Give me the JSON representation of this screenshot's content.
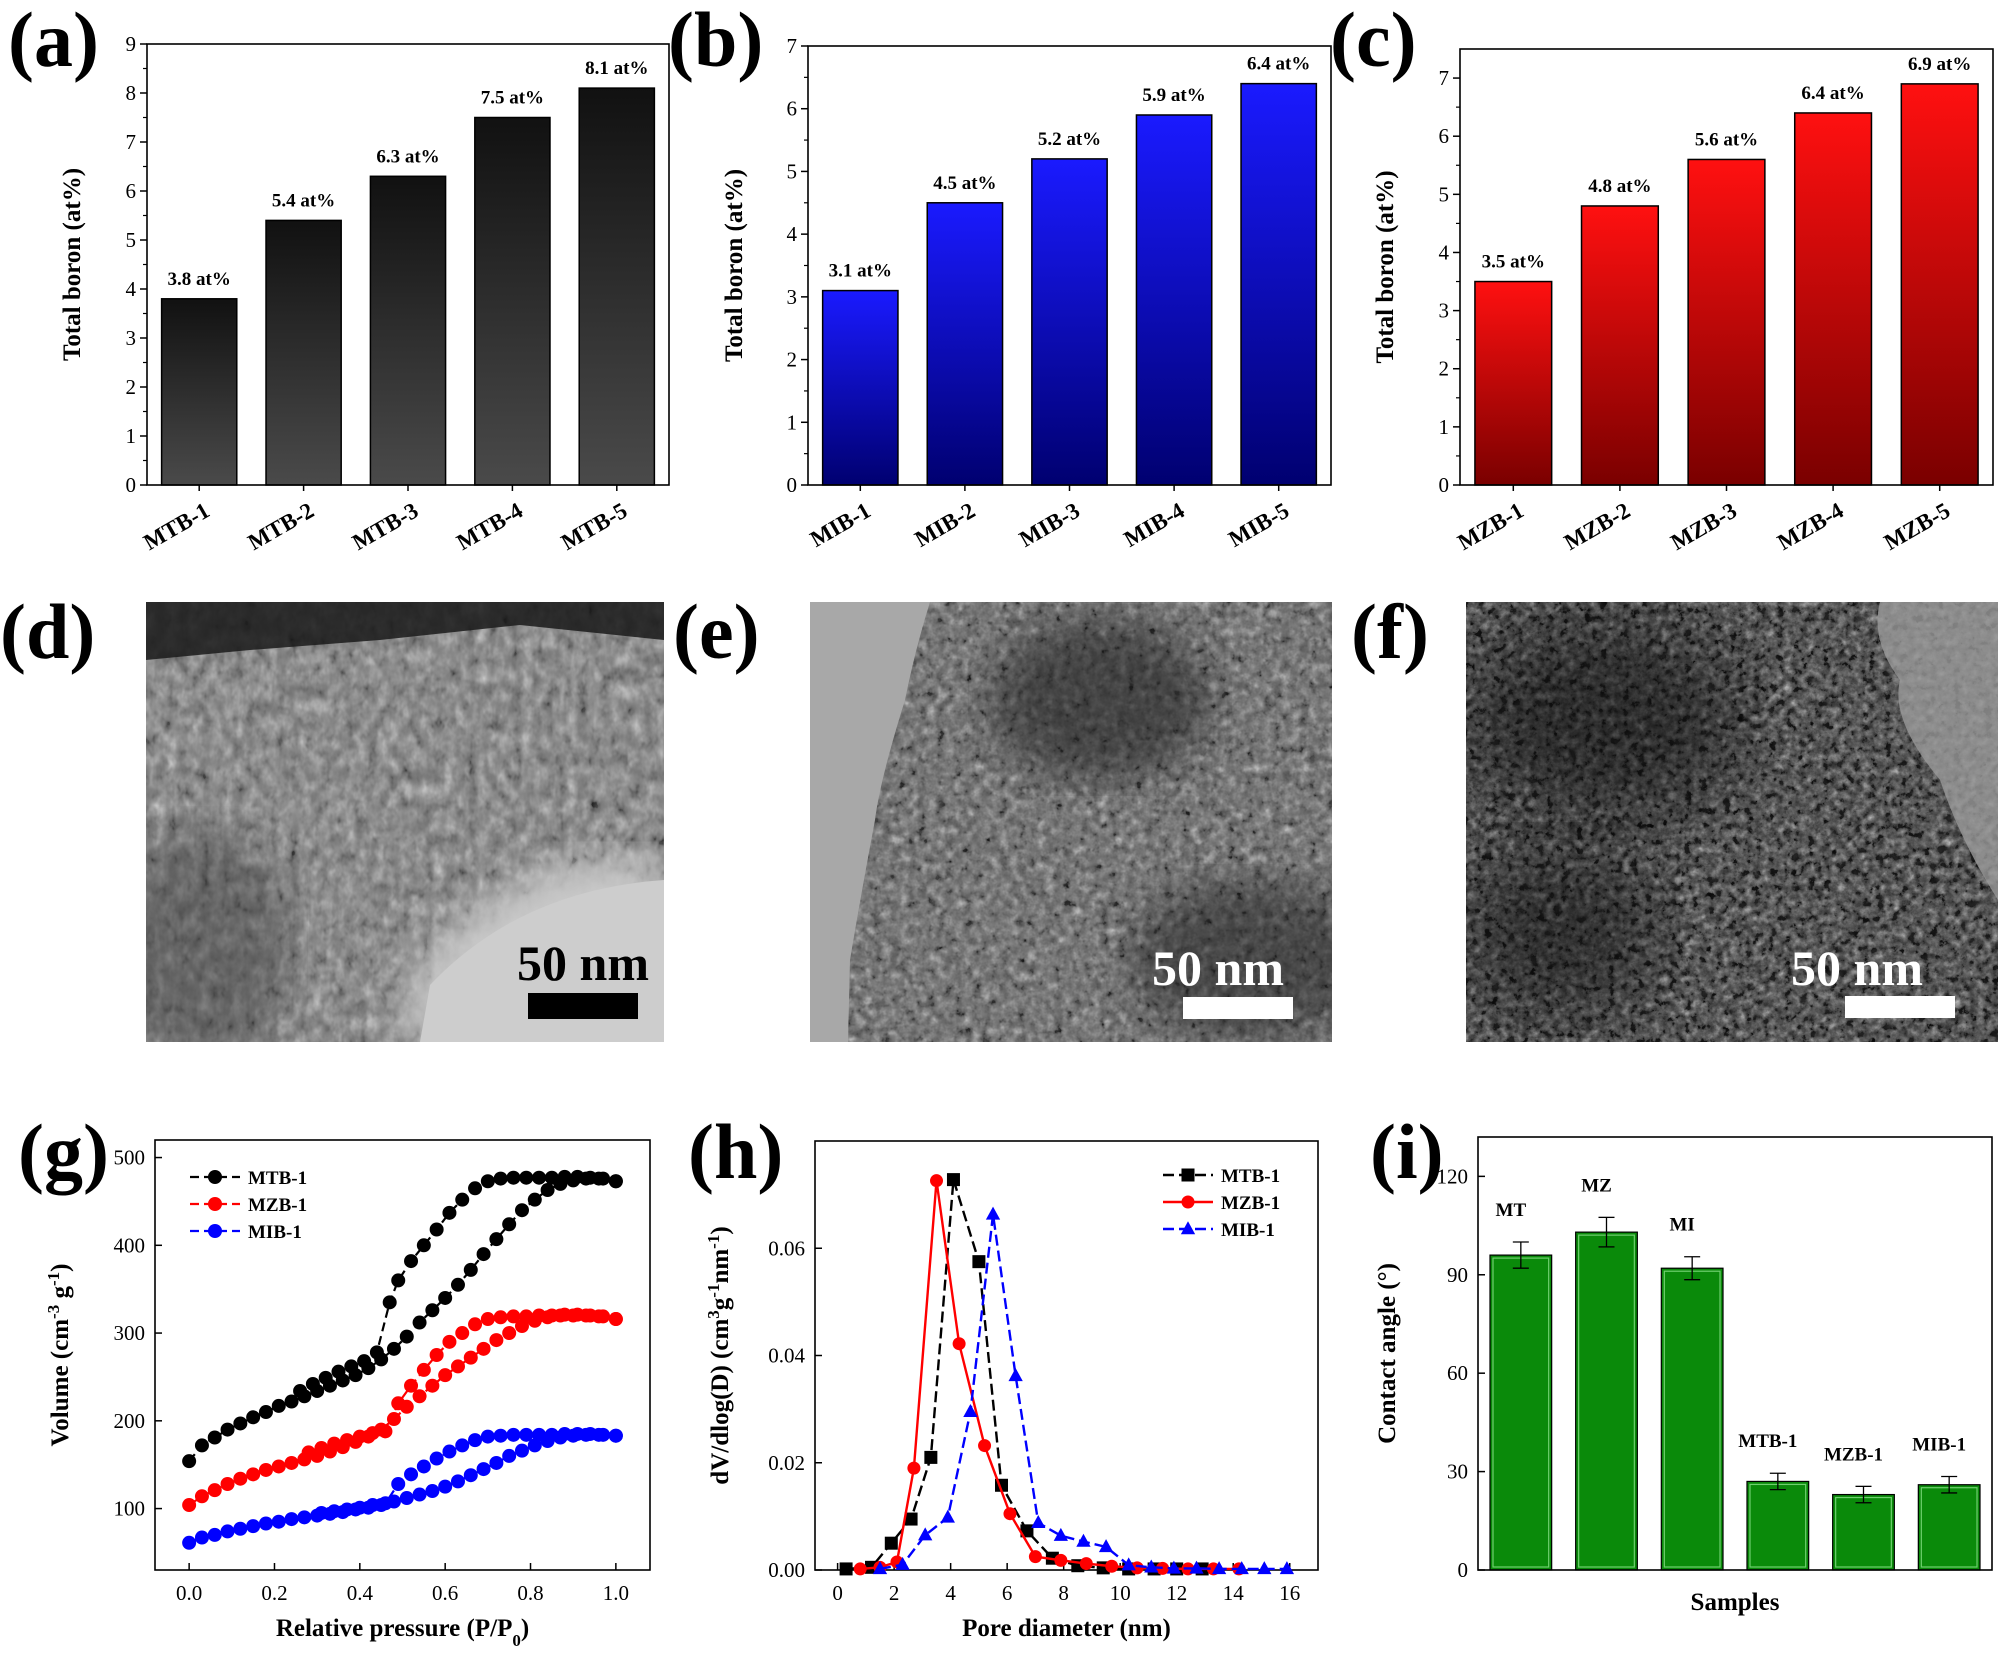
{
  "panel_letters": [
    "(a)",
    "(b)",
    "(c)",
    "(d)",
    "(e)",
    "(f)",
    "(g)",
    "(h)",
    "(i)"
  ],
  "colors": {
    "mtb": "#000000",
    "mib": "#0000ff",
    "mzb": "#ff0000",
    "contact": "#0a8a0a"
  },
  "chart_data": [
    {
      "panel": "(a)",
      "type": "bar",
      "categories": [
        "MTB-1",
        "MTB-2",
        "MTB-3",
        "MTB-4",
        "MTB-5"
      ],
      "values": [
        3.8,
        5.4,
        6.3,
        7.5,
        8.1
      ],
      "data_labels": [
        "3.8 at%",
        "5.4 at%",
        "6.3 at%",
        "7.5 at%",
        "8.1 at%"
      ],
      "ylabel": "Total boron (at%)",
      "ylim": [
        0,
        9
      ],
      "yticks": [
        0,
        1,
        2,
        3,
        4,
        5,
        6,
        7,
        8,
        9
      ],
      "color_top": "#111111",
      "color_bottom": "#4a4a4a"
    },
    {
      "panel": "(b)",
      "type": "bar",
      "categories": [
        "MIB-1",
        "MIB-2",
        "MIB-3",
        "MIB-4",
        "MIB-5"
      ],
      "values": [
        3.1,
        4.5,
        5.2,
        5.9,
        6.4
      ],
      "data_labels": [
        "3.1 at%",
        "4.5 at%",
        "5.2 at%",
        "5.9 at%",
        "6.4 at%"
      ],
      "ylabel": "Total boron (at%)",
      "ylim": [
        0,
        7
      ],
      "yticks": [
        0,
        1,
        2,
        3,
        4,
        5,
        6,
        7
      ],
      "color_top": "#1a1aff",
      "color_bottom": "#000070"
    },
    {
      "panel": "(c)",
      "type": "bar",
      "categories": [
        "MZB-1",
        "MZB-2",
        "MZB-3",
        "MZB-4",
        "MZB-5"
      ],
      "values": [
        3.5,
        4.8,
        5.6,
        6.4,
        6.9
      ],
      "data_labels": [
        "3.5 at%",
        "4.8 at%",
        "5.6 at%",
        "6.4 at%",
        "6.9 at%"
      ],
      "ylabel": "Total boron (at%)",
      "ylim": [
        0,
        7.5
      ],
      "yticks": [
        0,
        1,
        2,
        3,
        4,
        5,
        6,
        7
      ],
      "color_top": "#ff1010",
      "color_bottom": "#7a0000"
    },
    {
      "panel": "(g)",
      "type": "line",
      "xlabel": "Relative pressure (P/P",
      "xlabel_sub": "0",
      "xlabel_end": ")",
      "ylabel": "Volume (cm",
      "ylabel_sup1": "-3",
      "ylabel_mid": " g",
      "ylabel_sup2": "-1",
      "ylabel_end": ")",
      "xlim": [
        -0.08,
        1.08
      ],
      "ylim": [
        30,
        520
      ],
      "xticks": [
        0.0,
        0.2,
        0.4,
        0.6,
        0.8,
        1.0
      ],
      "xtick_labels": [
        "0.0",
        "0.2",
        "0.4",
        "0.6",
        "0.8",
        "1.0"
      ],
      "yticks": [
        100,
        200,
        300,
        400,
        500
      ],
      "series": [
        {
          "name": "MTB-1",
          "marker": "circle",
          "color": "#000000",
          "adsorption": {
            "x": [
              0.0,
              0.03,
              0.06,
              0.09,
              0.12,
              0.15,
              0.18,
              0.21,
              0.24,
              0.27,
              0.3,
              0.33,
              0.36,
              0.39,
              0.42,
              0.45,
              0.48,
              0.51,
              0.54,
              0.57,
              0.6,
              0.63,
              0.66,
              0.69,
              0.72,
              0.75,
              0.78,
              0.81,
              0.84,
              0.87,
              0.9,
              0.93,
              0.96,
              1.0
            ],
            "y": [
              154,
              172,
              181,
              190,
              197,
              204,
              210,
              217,
              222,
              228,
              234,
              240,
              246,
              252,
              260,
              270,
              282,
              296,
              312,
              326,
              340,
              355,
              372,
              390,
              407,
              424,
              440,
              452,
              463,
              470,
              474,
              476,
              476,
              473
            ]
          },
          "desorption": {
            "x": [
              1.0,
              0.97,
              0.94,
              0.91,
              0.88,
              0.85,
              0.82,
              0.79,
              0.76,
              0.73,
              0.7,
              0.67,
              0.64,
              0.61,
              0.58,
              0.55,
              0.52,
              0.49,
              0.47,
              0.44,
              0.41,
              0.38,
              0.35,
              0.32,
              0.29,
              0.26
            ],
            "y": [
              473,
              476,
              477,
              478,
              478,
              477,
              477,
              477,
              477,
              476,
              473,
              465,
              452,
              437,
              418,
              400,
              382,
              360,
              335,
              278,
              268,
              262,
              256,
              249,
              242,
              234
            ]
          }
        },
        {
          "name": "MZB-1",
          "marker": "circle",
          "color": "#ff0000",
          "adsorption": {
            "x": [
              0.0,
              0.03,
              0.06,
              0.09,
              0.12,
              0.15,
              0.18,
              0.21,
              0.24,
              0.27,
              0.3,
              0.33,
              0.36,
              0.39,
              0.42,
              0.45,
              0.48,
              0.51,
              0.54,
              0.57,
              0.6,
              0.63,
              0.66,
              0.69,
              0.72,
              0.75,
              0.78,
              0.81,
              0.84,
              0.87,
              0.9,
              0.93,
              0.96,
              1.0
            ],
            "y": [
              104,
              114,
              121,
              128,
              134,
              139,
              144,
              148,
              152,
              156,
              160,
              165,
              170,
              176,
              182,
              190,
              202,
              216,
              228,
              240,
              252,
              262,
              272,
              282,
              292,
              300,
              308,
              314,
              318,
              320,
              320,
              320,
              319,
              316
            ]
          },
          "desorption": {
            "x": [
              1.0,
              0.97,
              0.94,
              0.91,
              0.88,
              0.85,
              0.82,
              0.79,
              0.76,
              0.73,
              0.7,
              0.67,
              0.64,
              0.61,
              0.58,
              0.55,
              0.52,
              0.49,
              0.46,
              0.43,
              0.4,
              0.37,
              0.34,
              0.31,
              0.28
            ],
            "y": [
              316,
              319,
              320,
              321,
              321,
              320,
              320,
              319,
              319,
              318,
              316,
              310,
              300,
              290,
              275,
              258,
              240,
              220,
              188,
              186,
              182,
              178,
              174,
              169,
              164
            ]
          }
        },
        {
          "name": "MIB-1",
          "marker": "circle",
          "color": "#0000ff",
          "adsorption": {
            "x": [
              0.0,
              0.03,
              0.06,
              0.09,
              0.12,
              0.15,
              0.18,
              0.21,
              0.24,
              0.27,
              0.3,
              0.33,
              0.36,
              0.39,
              0.42,
              0.45,
              0.48,
              0.51,
              0.54,
              0.57,
              0.6,
              0.63,
              0.66,
              0.69,
              0.72,
              0.75,
              0.78,
              0.81,
              0.84,
              0.87,
              0.9,
              0.93,
              0.96,
              1.0
            ],
            "y": [
              61,
              67,
              70,
              74,
              77,
              80,
              83,
              85,
              88,
              90,
              92,
              94,
              96,
              99,
              101,
              104,
              108,
              112,
              116,
              120,
              125,
              131,
              138,
              145,
              152,
              160,
              166,
              172,
              177,
              181,
              183,
              184,
              184,
              183
            ]
          },
          "desorption": {
            "x": [
              1.0,
              0.97,
              0.94,
              0.91,
              0.88,
              0.85,
              0.82,
              0.79,
              0.76,
              0.73,
              0.7,
              0.67,
              0.64,
              0.61,
              0.58,
              0.55,
              0.52,
              0.49,
              0.46,
              0.43,
              0.4,
              0.37,
              0.34,
              0.31
            ],
            "y": [
              183,
              184,
              185,
              185,
              185,
              184,
              184,
              184,
              184,
              183,
              182,
              178,
              172,
              165,
              157,
              148,
              139,
              128,
              106,
              104,
              101,
              99,
              97,
              95
            ]
          }
        }
      ]
    },
    {
      "panel": "(h)",
      "type": "line",
      "xlabel": "Pore diameter (nm)",
      "ylabel": "dV/dlog(D) (cm",
      "ylabel_sup1": "3",
      "ylabel_mid": "g",
      "ylabel_sup2": "-1",
      "ylabel_mid2": "nm",
      "ylabel_sup3": "-1",
      "ylabel_end": ")",
      "xlim": [
        -0.8,
        17
      ],
      "ylim": [
        0,
        0.08
      ],
      "xticks": [
        0,
        2,
        4,
        6,
        8,
        10,
        12,
        14,
        16
      ],
      "yticks": [
        0.0,
        0.02,
        0.04,
        0.06
      ],
      "ytick_labels": [
        "0.00",
        "0.02",
        "0.04",
        "0.06"
      ],
      "series": [
        {
          "name": "MTB-1",
          "marker": "square",
          "color": "#000000",
          "x": [
            0.3,
            1.2,
            1.9,
            2.6,
            3.3,
            4.1,
            5.0,
            5.8,
            6.7,
            7.6,
            8.5,
            9.4,
            10.3,
            11.2,
            12.0,
            12.9
          ],
          "y": [
            0.0002,
            0.0005,
            0.005,
            0.0095,
            0.021,
            0.0728,
            0.0575,
            0.0158,
            0.0073,
            0.0022,
            0.0008,
            0.0004,
            0.0002,
            0.0002,
            0.0002,
            0.0002
          ]
        },
        {
          "name": "MZB-1",
          "marker": "circle",
          "color": "#ff0000",
          "x": [
            0.8,
            1.5,
            2.1,
            2.7,
            3.5,
            4.3,
            5.2,
            6.1,
            7.0,
            7.9,
            8.8,
            9.7,
            10.6,
            11.5,
            12.4,
            13.3,
            14.2
          ],
          "y": [
            0.0002,
            0.0005,
            0.0015,
            0.019,
            0.0726,
            0.0422,
            0.0232,
            0.0105,
            0.0025,
            0.0018,
            0.0012,
            0.0007,
            0.0004,
            0.0003,
            0.0002,
            0.0002,
            0.0002
          ]
        },
        {
          "name": "MIB-1",
          "marker": "triangle",
          "color": "#0000ff",
          "x": [
            1.5,
            2.3,
            3.1,
            3.9,
            4.7,
            5.5,
            6.3,
            7.1,
            7.9,
            8.7,
            9.5,
            10.3,
            11.1,
            11.9,
            12.7,
            13.5,
            14.3,
            15.1,
            15.9
          ],
          "y": [
            0.0002,
            0.001,
            0.0065,
            0.0098,
            0.0295,
            0.0663,
            0.0362,
            0.0088,
            0.0064,
            0.0053,
            0.0043,
            0.0009,
            0.0005,
            0.0003,
            0.0003,
            0.0002,
            0.0002,
            0.0002,
            0.0002
          ]
        }
      ]
    },
    {
      "panel": "(i)",
      "type": "bar",
      "categories": [
        "MT",
        "MZ",
        "MI",
        "MTB-1",
        "MZB-1",
        "MIB-1"
      ],
      "values": [
        96,
        103,
        92,
        27,
        23,
        26
      ],
      "errors": [
        4,
        4.5,
        3.5,
        2.5,
        2.5,
        2.5
      ],
      "xlabel": "Samples",
      "ylabel": "Contact angle (°)",
      "ylim": [
        0,
        132
      ],
      "yticks": [
        0,
        30,
        60,
        90,
        120
      ],
      "color": "#0a8a0a"
    }
  ],
  "tem_images": [
    {
      "panel": "(d)",
      "scale_label": "50 nm"
    },
    {
      "panel": "(e)",
      "scale_label": "50 nm"
    },
    {
      "panel": "(f)",
      "scale_label": "50 nm"
    }
  ]
}
